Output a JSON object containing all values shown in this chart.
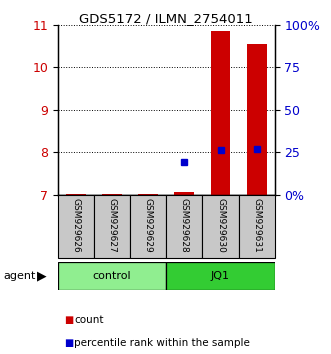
{
  "title": "GDS5172 / ILMN_2754011",
  "samples": [
    "GSM929626",
    "GSM929627",
    "GSM929629",
    "GSM929628",
    "GSM929630",
    "GSM929631"
  ],
  "groups": [
    "control",
    "control",
    "control",
    "JQ1",
    "JQ1",
    "JQ1"
  ],
  "group_colors": {
    "control": "#90EE90",
    "JQ1": "#33CC33"
  },
  "red_values": [
    7.02,
    7.02,
    7.02,
    7.07,
    10.85,
    10.55
  ],
  "blue_values": [
    null,
    null,
    null,
    7.77,
    8.05,
    8.08
  ],
  "ylim_left": [
    7,
    11
  ],
  "ylim_right": [
    0,
    100
  ],
  "yticks_left": [
    7,
    8,
    9,
    10,
    11
  ],
  "yticks_right": [
    0,
    25,
    50,
    75,
    100
  ],
  "ytick_labels_right": [
    "0%",
    "25",
    "50",
    "75",
    "100%"
  ],
  "bar_width": 0.55,
  "red_color": "#CC0000",
  "blue_color": "#0000CC",
  "left_tick_color": "#CC0000",
  "right_tick_color": "#0000CC",
  "legend_red": "count",
  "legend_blue": "percentile rank within the sample",
  "agent_label": "agent",
  "group_label_control": "control",
  "group_label_jq1": "JQ1",
  "sample_box_color": "#C8C8C8",
  "figsize": [
    3.31,
    3.54
  ],
  "dpi": 100
}
